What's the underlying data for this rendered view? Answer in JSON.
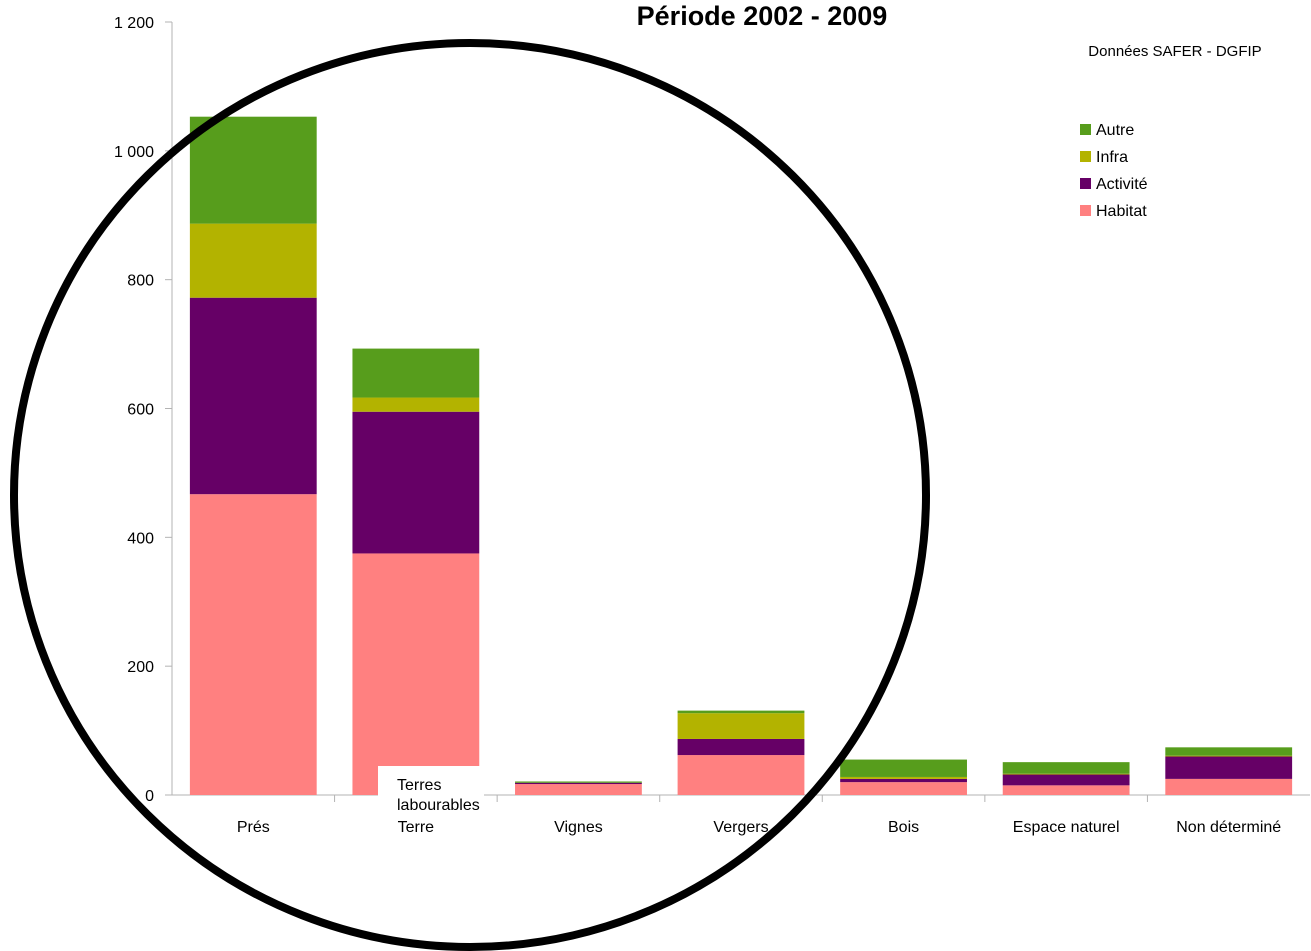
{
  "chart_data": {
    "type": "bar",
    "stacked": true,
    "title": "Période 2002 - 2009",
    "source": "Données SAFER - DGFIP",
    "categories": [
      "Prés",
      "Terre",
      "Vignes",
      "Vergers",
      "Bois",
      "Espace naturel",
      "Non déterminé"
    ],
    "series": [
      {
        "name": "Habitat",
        "color": "#ff8080",
        "values": [
          467,
          375,
          17,
          62,
          20,
          15,
          25
        ]
      },
      {
        "name": "Activité",
        "color": "#660066",
        "values": [
          305,
          220,
          2,
          25,
          5,
          17,
          35
        ]
      },
      {
        "name": "Infra",
        "color": "#b3b300",
        "values": [
          115,
          22,
          0,
          40,
          3,
          1,
          1
        ]
      },
      {
        "name": "Autre",
        "color": "#579d1c",
        "values": [
          166,
          76,
          2,
          4,
          27,
          18,
          13
        ]
      }
    ],
    "legend_order": [
      "Autre",
      "Infra",
      "Activité",
      "Habitat"
    ],
    "y_ticks": [
      "0",
      "200",
      "400",
      "600",
      "800",
      "1 000",
      "1 200"
    ],
    "ylim": [
      0,
      1200
    ],
    "legend_position": "top-right",
    "grid": false,
    "annotation": {
      "text": "Terres labourables",
      "lines": [
        "Terres",
        "labourables"
      ]
    }
  }
}
